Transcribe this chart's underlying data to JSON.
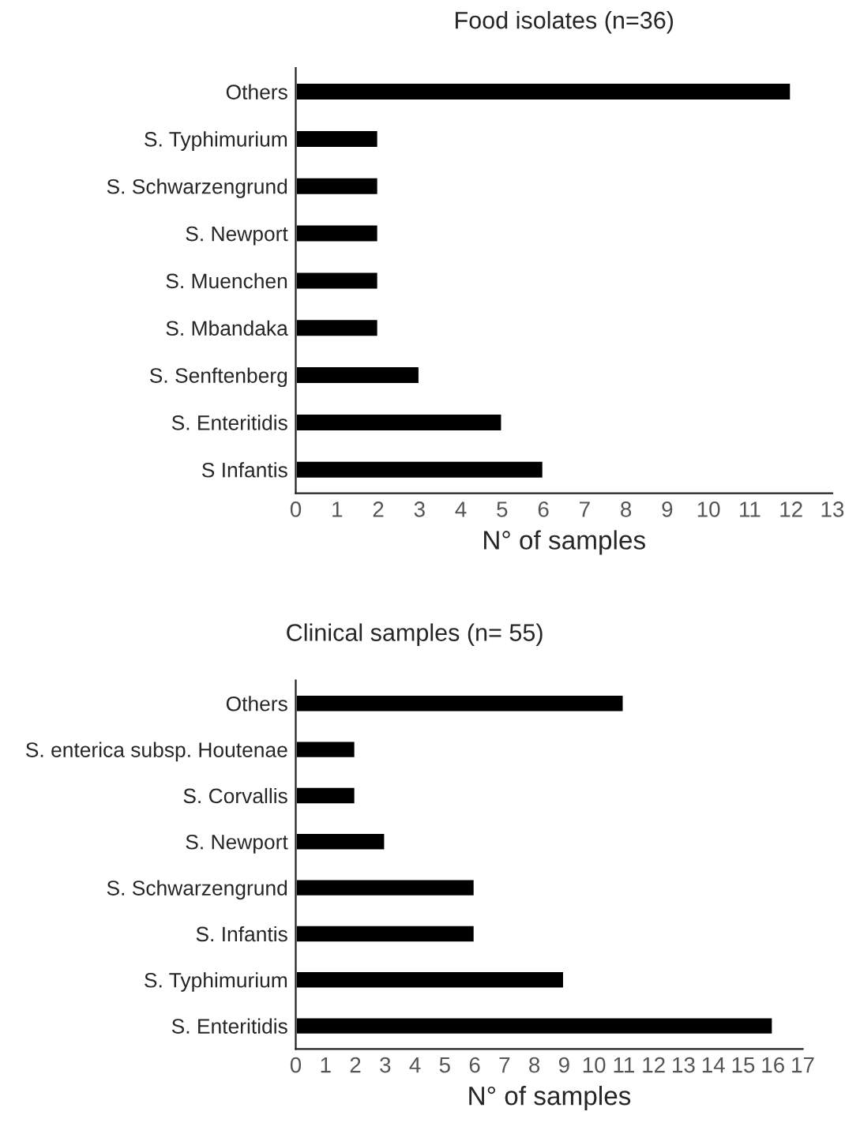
{
  "chart_data": [
    {
      "type": "bar",
      "orientation": "horizontal",
      "title": "Food isolates (n=36)",
      "xlabel": "N° of samples",
      "categories": [
        "Others",
        "S. Typhimurium",
        "S. Schwarzengrund",
        "S. Newport",
        "S. Muenchen",
        "S. Mbandaka",
        "S. Senftenberg",
        "S. Enteritidis",
        "S Infantis"
      ],
      "values": [
        12,
        2,
        2,
        2,
        2,
        2,
        3,
        5,
        6
      ],
      "color": "#000000",
      "xlim": [
        0,
        13
      ],
      "xticks": [
        0,
        1,
        2,
        3,
        4,
        5,
        6,
        7,
        8,
        9,
        10,
        11,
        12,
        13
      ],
      "grid": false,
      "legend": false
    },
    {
      "type": "bar",
      "orientation": "horizontal",
      "title": "Clinical samples (n= 55)",
      "xlabel": "N° of samples",
      "categories": [
        "Others",
        "S. enterica subsp. Houtenae",
        "S. Corvallis",
        "S. Newport",
        "S. Schwarzengrund",
        "S. Infantis",
        "S. Typhimurium",
        "S. Enteritidis"
      ],
      "values": [
        11,
        2,
        2,
        3,
        6,
        6,
        9,
        16
      ],
      "color": "#000000",
      "xlim": [
        0,
        17
      ],
      "xticks": [
        0,
        1,
        2,
        3,
        4,
        5,
        6,
        7,
        8,
        9,
        10,
        11,
        12,
        13,
        14,
        15,
        16,
        17
      ],
      "grid": false,
      "legend": false
    }
  ]
}
